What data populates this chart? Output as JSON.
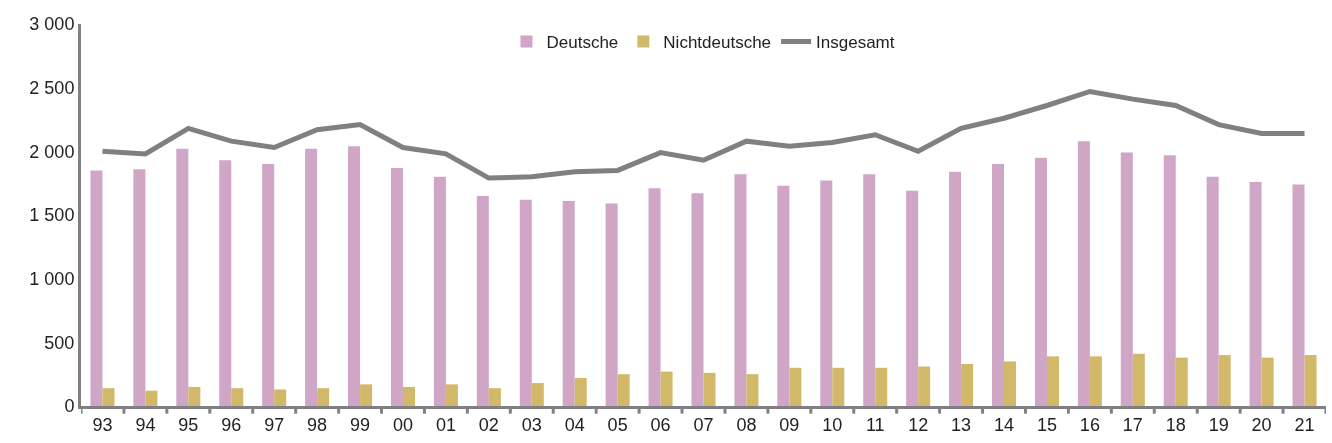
{
  "chart_data": {
    "type": "bar",
    "categories": [
      "93",
      "94",
      "95",
      "96",
      "97",
      "98",
      "99",
      "00",
      "01",
      "02",
      "03",
      "04",
      "05",
      "06",
      "07",
      "08",
      "09",
      "10",
      "11",
      "12",
      "13",
      "14",
      "15",
      "16",
      "17",
      "18",
      "19",
      "20",
      "21"
    ],
    "series": [
      {
        "name": "Deutsche",
        "color": "#d0a6c6",
        "values": [
          1850,
          1860,
          2020,
          1930,
          1900,
          2020,
          2040,
          1870,
          1800,
          1650,
          1620,
          1610,
          1590,
          1710,
          1670,
          1820,
          1730,
          1770,
          1820,
          1690,
          1840,
          1900,
          1950,
          2080,
          1990,
          1970,
          1800,
          1760,
          1740
        ]
      },
      {
        "name": "Nichtdeutsche",
        "color": "#d2b96a",
        "values": [
          140,
          120,
          150,
          140,
          130,
          140,
          170,
          150,
          170,
          140,
          180,
          220,
          250,
          270,
          260,
          250,
          300,
          300,
          300,
          310,
          330,
          350,
          390,
          390,
          410,
          380,
          400,
          380,
          400
        ]
      },
      {
        "name": "Insgesamt",
        "type": "line",
        "color": "#7f7f84",
        "values": [
          2000,
          1980,
          2180,
          2080,
          2030,
          2170,
          2210,
          2030,
          1980,
          1790,
          1800,
          1840,
          1850,
          1990,
          1930,
          2080,
          2040,
          2070,
          2130,
          2000,
          2180,
          2260,
          2360,
          2470,
          2410,
          2360,
          2210,
          2140,
          2140
        ]
      }
    ],
    "ylim": [
      0,
      3000
    ],
    "yticks": [
      0,
      {
        "value": 500,
        "label": "500"
      },
      {
        "value": 1000,
        "label": "1 000"
      },
      {
        "value": 1500,
        "label": "1 500"
      },
      {
        "value": 2000,
        "label": "2 000"
      },
      {
        "value": 2500,
        "label": "2 500"
      },
      {
        "value": 3000,
        "label": "3 000"
      }
    ],
    "legend": "top",
    "marker": "none",
    "line_style": "solid"
  }
}
